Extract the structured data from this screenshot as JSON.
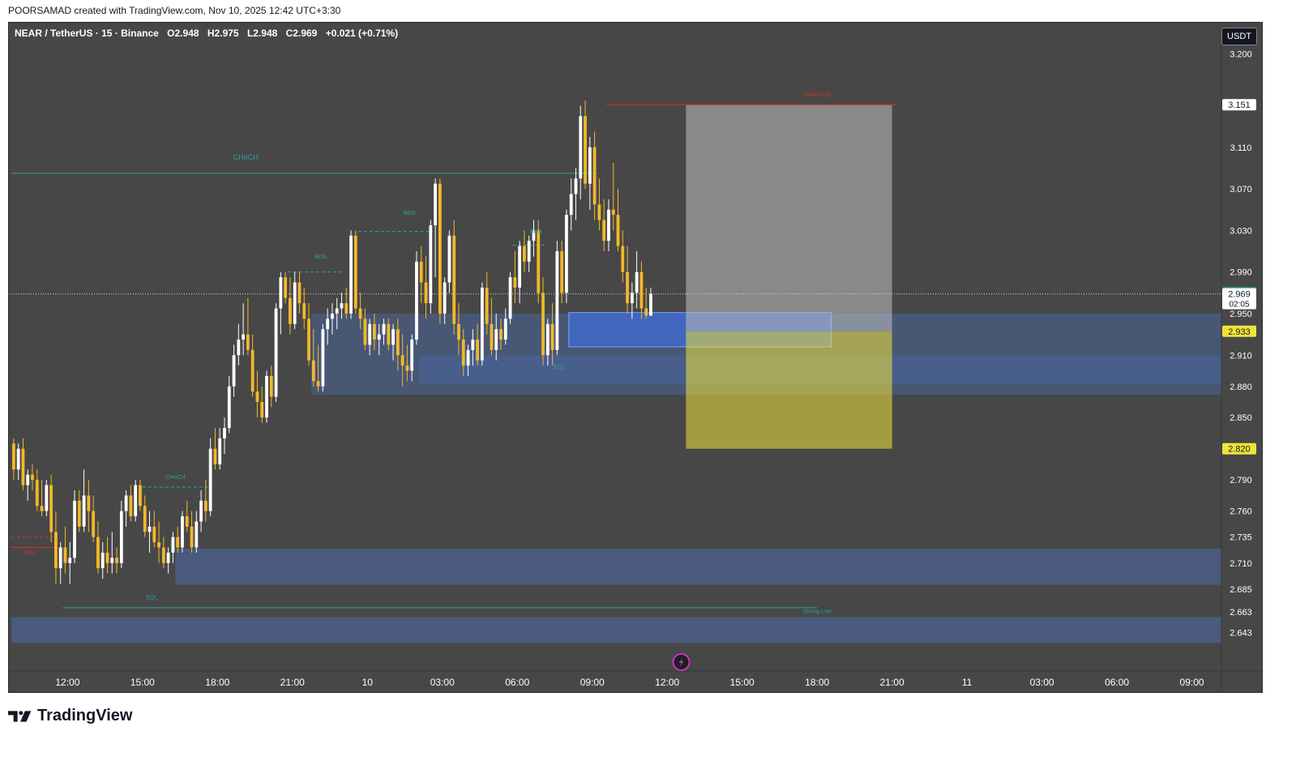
{
  "header": {
    "attribution": "POORSAMAD created with TradingView.com, Nov 10, 2025 12:42 UTC+3:30"
  },
  "symbol": {
    "name": "NEAR / TetherUS · 15 · Binance",
    "open": "O2.948",
    "high": "H2.975",
    "low": "L2.948",
    "close": "C2.969",
    "change": "+0.021 (+0.71%)"
  },
  "currency": "USDT",
  "footer": {
    "brand": "TradingView"
  },
  "colors": {
    "background": "#474747",
    "bull": "#ffffff",
    "bear": "#f3b82a",
    "zone": "#4a6aa8",
    "structure": "#26a69a",
    "weak_high": "#d32f2f",
    "last_price": "#26a69a",
    "target": "#f0e33a"
  },
  "icons": {
    "replay": "lightning-icon"
  },
  "chart_data": {
    "type": "candlestick",
    "title": "",
    "xlabel": "",
    "ylabel": "",
    "ylim": [
      2.63,
      3.23
    ],
    "y_ticks": [
      3.2,
      3.11,
      3.07,
      3.03,
      2.99,
      2.95,
      2.91,
      2.88,
      2.85,
      2.79,
      2.76,
      2.735,
      2.71,
      2.685,
      2.663,
      2.643
    ],
    "y_tick_labels": [
      "3.200",
      "3.110",
      "3.070",
      "3.030",
      "2.990",
      "2.950",
      "2.910",
      "2.880",
      "2.850",
      "2.790",
      "2.760",
      "2.735",
      "2.710",
      "2.685",
      "2.663",
      "2.643"
    ],
    "x_ticks": [
      {
        "label": "12:00",
        "bar": 12
      },
      {
        "label": "15:00",
        "bar": 28
      },
      {
        "label": "18:00",
        "bar": 44
      },
      {
        "label": "21:00",
        "bar": 60
      },
      {
        "label": "10",
        "bar": 76
      },
      {
        "label": "03:00",
        "bar": 92
      },
      {
        "label": "06:00",
        "bar": 108
      },
      {
        "label": "09:00",
        "bar": 124
      },
      {
        "label": "12:00",
        "bar": 140
      },
      {
        "label": "15:00",
        "bar": 156
      },
      {
        "label": "18:00",
        "bar": 172
      },
      {
        "label": "21:00",
        "bar": 188
      },
      {
        "label": "11",
        "bar": 204
      },
      {
        "label": "03:00",
        "bar": 220
      },
      {
        "label": "06:00",
        "bar": 236
      },
      {
        "label": "09:00",
        "bar": 252
      }
    ],
    "price_labels": [
      {
        "value": 3.151,
        "text": "3.151",
        "style": "white"
      },
      {
        "value": 2.97,
        "text": "2.970",
        "style": "green"
      },
      {
        "value": 2.969,
        "text": "2.969",
        "style": "white"
      },
      {
        "value": 2.933,
        "text": "2.933",
        "style": "yellow"
      },
      {
        "value": 2.82,
        "text": "2.820",
        "style": "yellow"
      }
    ],
    "countdown": "02:05",
    "last_price": 2.969,
    "annotations": [
      {
        "text": "CHoCH",
        "bar": 50,
        "price": 3.098,
        "color": "structure"
      },
      {
        "text": "BOS",
        "bar": 85,
        "price": 3.045,
        "color": "structure"
      },
      {
        "text": "BOS",
        "bar": 66,
        "price": 3.003,
        "color": "structure"
      },
      {
        "text": "BOS",
        "bar": 112,
        "price": 3.027,
        "color": "structure"
      },
      {
        "text": "CHoCH",
        "bar": 35,
        "price": 2.791,
        "color": "structure"
      },
      {
        "text": "BOS",
        "bar": 4,
        "price": 2.718,
        "color": "weak_high"
      },
      {
        "text": "EQL",
        "bar": 30,
        "price": 2.675,
        "color": "structure"
      },
      {
        "text": "EQL",
        "bar": 117,
        "price": 2.897,
        "color": "structure"
      },
      {
        "text": "Weak High",
        "bar": 172,
        "price": 3.159,
        "color": "weak_high"
      },
      {
        "text": "Strong Low",
        "bar": 172,
        "price": 2.662,
        "color": "structure"
      }
    ],
    "levels": [
      {
        "from": 0,
        "to": 125,
        "price": 3.085,
        "style": "solid",
        "color": "structure"
      },
      {
        "from": 127,
        "to": 189,
        "price": 3.151,
        "style": "solid",
        "color": "weak_high"
      },
      {
        "from": 74,
        "to": 90,
        "price": 3.029,
        "style": "dashed",
        "color": "structure"
      },
      {
        "from": 59,
        "to": 71,
        "price": 2.99,
        "style": "dashed",
        "color": "structure"
      },
      {
        "from": 107,
        "to": 114,
        "price": 3.016,
        "style": "dashed",
        "color": "structure"
      },
      {
        "from": 28,
        "to": 43,
        "price": 2.783,
        "style": "dashed",
        "color": "structure"
      },
      {
        "from": 0,
        "to": 10,
        "price": 2.735,
        "style": "dashed",
        "color": "weak_high"
      },
      {
        "from": 0,
        "to": 10,
        "price": 2.725,
        "style": "solid",
        "color": "weak_high"
      },
      {
        "from": 11,
        "to": 172,
        "price": 2.667,
        "style": "solid",
        "color": "structure"
      }
    ],
    "zones": [
      {
        "from": 64,
        "to": 263,
        "top": 2.95,
        "bottom": 2.872,
        "opacity": 0.45
      },
      {
        "from": 87,
        "to": 263,
        "top": 2.91,
        "bottom": 2.882,
        "opacity": 0.45
      },
      {
        "from": 35,
        "to": 263,
        "top": 2.724,
        "bottom": 2.689,
        "opacity": 0.55
      },
      {
        "from": 0,
        "to": 263,
        "top": 2.658,
        "bottom": 2.633,
        "opacity": 0.55
      },
      {
        "from": 119,
        "to": 175,
        "top": 2.951,
        "bottom": 2.918,
        "opacity": 0.75
      }
    ],
    "position": {
      "from": 144,
      "to": 188,
      "entry": 2.933,
      "stop": 3.151,
      "target": 2.82
    },
    "candles_ohlc": [
      [
        2.825,
        2.83,
        2.79,
        2.8
      ],
      [
        2.8,
        2.825,
        2.79,
        2.82
      ],
      [
        2.82,
        2.83,
        2.78,
        2.785
      ],
      [
        2.785,
        2.8,
        2.77,
        2.795
      ],
      [
        2.795,
        2.805,
        2.78,
        2.79
      ],
      [
        2.79,
        2.8,
        2.76,
        2.765
      ],
      [
        2.765,
        2.79,
        2.755,
        2.76
      ],
      [
        2.76,
        2.79,
        2.755,
        2.785
      ],
      [
        2.785,
        2.795,
        2.73,
        2.74
      ],
      [
        2.74,
        2.76,
        2.69,
        2.705
      ],
      [
        2.705,
        2.73,
        2.69,
        2.725
      ],
      [
        2.725,
        2.745,
        2.7,
        2.71
      ],
      [
        2.71,
        2.73,
        2.69,
        2.715
      ],
      [
        2.715,
        2.78,
        2.71,
        2.77
      ],
      [
        2.77,
        2.78,
        2.74,
        2.745
      ],
      [
        2.745,
        2.8,
        2.74,
        2.775
      ],
      [
        2.775,
        2.79,
        2.74,
        2.76
      ],
      [
        2.76,
        2.775,
        2.73,
        2.735
      ],
      [
        2.735,
        2.75,
        2.7,
        2.705
      ],
      [
        2.705,
        2.73,
        2.695,
        2.72
      ],
      [
        2.72,
        2.735,
        2.7,
        2.71
      ],
      [
        2.71,
        2.74,
        2.7,
        2.715
      ],
      [
        2.715,
        2.725,
        2.7,
        2.71
      ],
      [
        2.71,
        2.77,
        2.705,
        2.76
      ],
      [
        2.76,
        2.78,
        2.745,
        2.775
      ],
      [
        2.775,
        2.785,
        2.75,
        2.755
      ],
      [
        2.755,
        2.79,
        2.75,
        2.785
      ],
      [
        2.785,
        2.79,
        2.76,
        2.765
      ],
      [
        2.765,
        2.775,
        2.735,
        2.74
      ],
      [
        2.74,
        2.76,
        2.72,
        2.745
      ],
      [
        2.745,
        2.76,
        2.725,
        2.73
      ],
      [
        2.73,
        2.75,
        2.71,
        2.725
      ],
      [
        2.725,
        2.735,
        2.705,
        2.71
      ],
      [
        2.71,
        2.725,
        2.7,
        2.72
      ],
      [
        2.72,
        2.74,
        2.71,
        2.735
      ],
      [
        2.735,
        2.745,
        2.72,
        2.725
      ],
      [
        2.725,
        2.76,
        2.72,
        2.755
      ],
      [
        2.755,
        2.77,
        2.74,
        2.745
      ],
      [
        2.745,
        2.76,
        2.72,
        2.725
      ],
      [
        2.725,
        2.76,
        2.72,
        2.75
      ],
      [
        2.75,
        2.78,
        2.74,
        2.77
      ],
      [
        2.77,
        2.79,
        2.75,
        2.76
      ],
      [
        2.76,
        2.83,
        2.755,
        2.82
      ],
      [
        2.82,
        2.84,
        2.8,
        2.805
      ],
      [
        2.805,
        2.84,
        2.8,
        2.83
      ],
      [
        2.83,
        2.85,
        2.815,
        2.84
      ],
      [
        2.84,
        2.89,
        2.835,
        2.88
      ],
      [
        2.88,
        2.92,
        2.87,
        2.91
      ],
      [
        2.91,
        2.94,
        2.9,
        2.925
      ],
      [
        2.925,
        2.96,
        2.91,
        2.93
      ],
      [
        2.93,
        2.965,
        2.91,
        2.915
      ],
      [
        2.915,
        2.93,
        2.87,
        2.875
      ],
      [
        2.875,
        2.895,
        2.85,
        2.865
      ],
      [
        2.865,
        2.88,
        2.845,
        2.85
      ],
      [
        2.85,
        2.895,
        2.845,
        2.89
      ],
      [
        2.89,
        2.9,
        2.86,
        2.87
      ],
      [
        2.87,
        2.96,
        2.865,
        2.955
      ],
      [
        2.955,
        2.99,
        2.93,
        2.985
      ],
      [
        2.985,
        2.99,
        2.96,
        2.965
      ],
      [
        2.965,
        2.985,
        2.93,
        2.94
      ],
      [
        2.94,
        2.99,
        2.935,
        2.98
      ],
      [
        2.98,
        2.99,
        2.95,
        2.96
      ],
      [
        2.96,
        2.975,
        2.935,
        2.945
      ],
      [
        2.945,
        2.96,
        2.9,
        2.905
      ],
      [
        2.905,
        2.935,
        2.88,
        2.885
      ],
      [
        2.885,
        2.92,
        2.875,
        2.88
      ],
      [
        2.88,
        2.94,
        2.875,
        2.935
      ],
      [
        2.935,
        2.955,
        2.92,
        2.945
      ],
      [
        2.945,
        2.96,
        2.93,
        2.95
      ],
      [
        2.95,
        2.965,
        2.935,
        2.955
      ],
      [
        2.955,
        2.97,
        2.945,
        2.96
      ],
      [
        2.96,
        2.975,
        2.945,
        2.95
      ],
      [
        2.95,
        3.03,
        2.945,
        3.025
      ],
      [
        3.025,
        3.03,
        2.95,
        2.955
      ],
      [
        2.955,
        2.97,
        2.935,
        2.945
      ],
      [
        2.945,
        2.955,
        2.915,
        2.92
      ],
      [
        2.92,
        2.945,
        2.91,
        2.94
      ],
      [
        2.94,
        2.95,
        2.915,
        2.925
      ],
      [
        2.925,
        2.94,
        2.91,
        2.93
      ],
      [
        2.93,
        2.945,
        2.92,
        2.94
      ],
      [
        2.94,
        2.945,
        2.915,
        2.92
      ],
      [
        2.92,
        2.94,
        2.905,
        2.935
      ],
      [
        2.935,
        2.945,
        2.895,
        2.91
      ],
      [
        2.91,
        2.93,
        2.88,
        2.9
      ],
      [
        2.9,
        2.92,
        2.885,
        2.895
      ],
      [
        2.895,
        2.93,
        2.885,
        2.925
      ],
      [
        2.925,
        3.01,
        2.92,
        3.0
      ],
      [
        3.0,
        3.015,
        2.96,
        2.98
      ],
      [
        2.98,
        3.005,
        2.945,
        2.96
      ],
      [
        2.96,
        3.04,
        2.95,
        3.035
      ],
      [
        3.035,
        3.08,
        2.985,
        3.075
      ],
      [
        3.075,
        3.08,
        2.94,
        2.95
      ],
      [
        2.95,
        2.985,
        2.94,
        2.98
      ],
      [
        2.98,
        3.03,
        2.97,
        3.025
      ],
      [
        3.025,
        3.04,
        2.93,
        2.94
      ],
      [
        2.94,
        2.96,
        2.91,
        2.925
      ],
      [
        2.925,
        2.935,
        2.89,
        2.9
      ],
      [
        2.9,
        2.92,
        2.89,
        2.915
      ],
      [
        2.915,
        2.935,
        2.9,
        2.925
      ],
      [
        2.925,
        2.94,
        2.9,
        2.905
      ],
      [
        2.905,
        2.98,
        2.9,
        2.975
      ],
      [
        2.975,
        2.99,
        2.93,
        2.94
      ],
      [
        2.94,
        2.965,
        2.91,
        2.915
      ],
      [
        2.915,
        2.95,
        2.905,
        2.935
      ],
      [
        2.935,
        2.945,
        2.915,
        2.925
      ],
      [
        2.925,
        2.955,
        2.92,
        2.945
      ],
      [
        2.945,
        2.99,
        2.94,
        2.985
      ],
      [
        2.985,
        3.01,
        2.96,
        2.975
      ],
      [
        2.975,
        3.02,
        2.96,
        3.015
      ],
      [
        3.015,
        3.03,
        2.99,
        3.0
      ],
      [
        3.0,
        3.025,
        2.99,
        3.02
      ],
      [
        3.02,
        3.04,
        3.005,
        3.03
      ],
      [
        3.03,
        3.04,
        2.96,
        2.97
      ],
      [
        2.97,
        2.985,
        2.9,
        2.91
      ],
      [
        2.91,
        2.945,
        2.9,
        2.94
      ],
      [
        2.94,
        2.96,
        2.9,
        2.915
      ],
      [
        2.915,
        3.02,
        2.91,
        3.01
      ],
      [
        3.01,
        3.02,
        2.96,
        2.97
      ],
      [
        2.97,
        3.05,
        2.96,
        3.045
      ],
      [
        3.045,
        3.08,
        3.03,
        3.065
      ],
      [
        3.065,
        3.09,
        3.04,
        3.08
      ],
      [
        3.08,
        3.15,
        3.06,
        3.14
      ],
      [
        3.14,
        3.155,
        3.07,
        3.075
      ],
      [
        3.075,
        3.12,
        3.05,
        3.11
      ],
      [
        3.11,
        3.125,
        3.04,
        3.055
      ],
      [
        3.055,
        3.08,
        3.03,
        3.04
      ],
      [
        3.04,
        3.06,
        3.01,
        3.02
      ],
      [
        3.02,
        3.06,
        3.01,
        3.05
      ],
      [
        3.05,
        3.095,
        3.03,
        3.045
      ],
      [
        3.045,
        3.07,
        3.01,
        3.015
      ],
      [
        3.015,
        3.03,
        2.98,
        2.99
      ],
      [
        2.99,
        3.015,
        2.95,
        2.96
      ],
      [
        2.96,
        2.98,
        2.945,
        2.97
      ],
      [
        2.97,
        3.01,
        2.955,
        2.99
      ],
      [
        2.99,
        3.0,
        2.945,
        2.955
      ],
      [
        2.955,
        2.975,
        2.945,
        2.948
      ],
      [
        2.948,
        2.975,
        2.948,
        2.969
      ]
    ]
  }
}
